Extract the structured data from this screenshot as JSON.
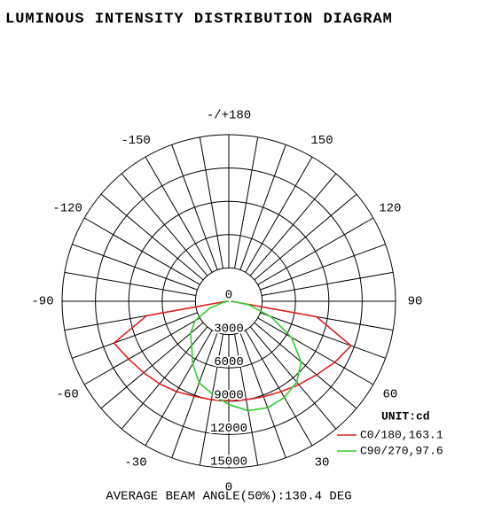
{
  "chart_data": {
    "type": "polar",
    "title": "LUMINOUS INTENSITY DISTRIBUTION DIAGRAM",
    "unit_label": "UNIT:cd",
    "footer": "AVERAGE BEAM ANGLE(50%):130.4 DEG",
    "x": [
      -90,
      -80,
      -70,
      -60,
      -50,
      -40,
      -30,
      -20,
      -10,
      0,
      10,
      20,
      30,
      40,
      50,
      60,
      70,
      80,
      90
    ],
    "series": [
      {
        "name": "C0/180,163.1",
        "color": "#e02020",
        "values": [
          200,
          7500,
          11000,
          10400,
          10000,
          9700,
          9400,
          9100,
          9000,
          8950,
          9000,
          9150,
          9400,
          9800,
          10300,
          11000,
          11700,
          8000,
          200
        ]
      },
      {
        "name": "C90/270,97.6",
        "color": "#33cc33",
        "values": [
          0,
          500,
          1800,
          3500,
          4500,
          5200,
          6500,
          7800,
          8500,
          9300,
          10000,
          10200,
          10000,
          9500,
          8500,
          6500,
          4000,
          1800,
          300
        ]
      }
    ],
    "rlim": [
      0,
      15000
    ],
    "rticks": [
      0,
      3000,
      6000,
      9000,
      12000,
      15000
    ],
    "thetaticks": [
      {
        "value": 180,
        "label": "-/+180"
      },
      150,
      120,
      90,
      60,
      30,
      0,
      -30,
      -60,
      -90,
      -120,
      -150
    ]
  }
}
